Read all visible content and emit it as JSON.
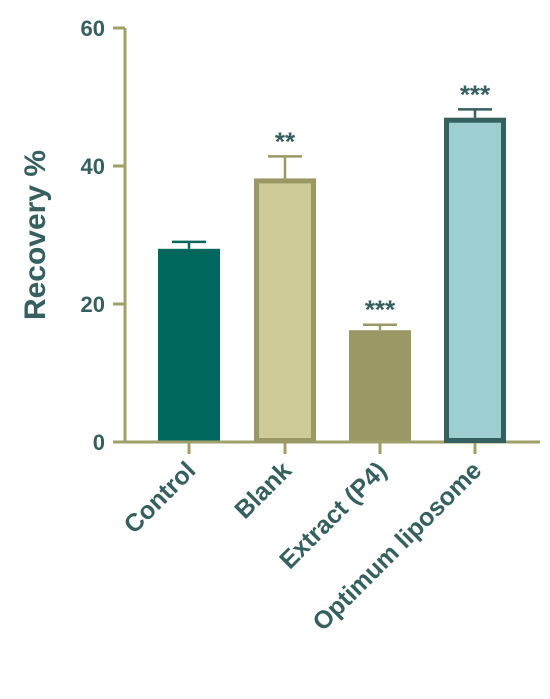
{
  "chart_data": {
    "type": "bar",
    "categories": [
      "Control",
      "Blank",
      "Extract (P4)",
      "Optimum liposome"
    ],
    "values": [
      28,
      38.2,
      16.2,
      47
    ],
    "errors": [
      1,
      3.2,
      0.8,
      1.2
    ],
    "significance": [
      "",
      "**",
      "***",
      "***"
    ],
    "title": "",
    "xlabel": "",
    "ylabel": "Recovery %",
    "ylim": [
      0,
      60
    ],
    "yticks": [
      0,
      20,
      40,
      60
    ],
    "grid": false,
    "legend": "none",
    "colors": {
      "axis": "#a19f6a",
      "text": "#35605f",
      "bars_fill": [
        "#00675f",
        "#cfcb98",
        "#9a9966",
        "#9dcfd0"
      ],
      "bars_stroke": [
        "#00675f",
        "#9a9966",
        "#9a9966",
        "#35605f"
      ]
    }
  }
}
